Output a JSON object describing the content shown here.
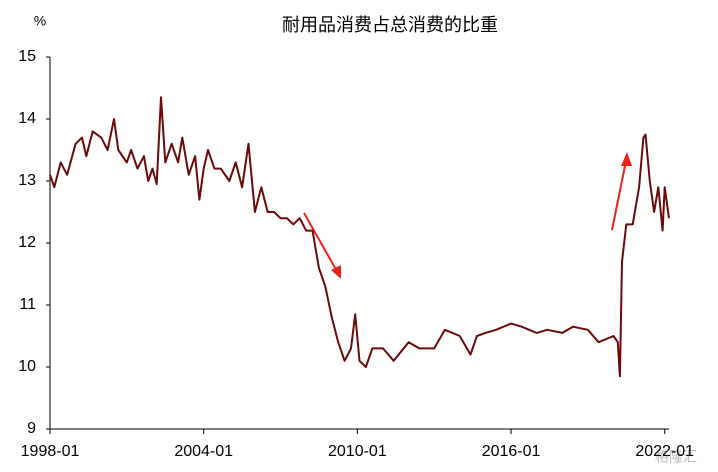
{
  "chart_data": {
    "type": "line",
    "title": "耐用品消费占总消费的比重",
    "y_unit": "%",
    "watermark": "格隆汇",
    "x": [
      "1998-01",
      "1998-03",
      "1998-06",
      "1998-09",
      "1999-01",
      "1999-04",
      "1999-06",
      "1999-09",
      "2000-01",
      "2000-04",
      "2000-07",
      "2000-09",
      "2001-01",
      "2001-03",
      "2001-06",
      "2001-09",
      "2001-11",
      "2002-01",
      "2002-03",
      "2002-05",
      "2002-07",
      "2002-10",
      "2003-01",
      "2003-03",
      "2003-06",
      "2003-09",
      "2003-11",
      "2004-01",
      "2004-03",
      "2004-06",
      "2004-09",
      "2005-01",
      "2005-04",
      "2005-07",
      "2005-10",
      "2006-01",
      "2006-04",
      "2006-07",
      "2006-10",
      "2007-01",
      "2007-04",
      "2007-07",
      "2007-10",
      "2008-01",
      "2008-04",
      "2008-07",
      "2008-10",
      "2009-01",
      "2009-04",
      "2009-07",
      "2009-10",
      "2009-12",
      "2010-02",
      "2010-05",
      "2010-08",
      "2011-01",
      "2011-06",
      "2012-01",
      "2012-06",
      "2013-01",
      "2013-06",
      "2014-01",
      "2014-06",
      "2014-09",
      "2015-01",
      "2015-06",
      "2016-01",
      "2016-06",
      "2017-01",
      "2017-06",
      "2018-01",
      "2018-06",
      "2019-01",
      "2019-06",
      "2020-01",
      "2020-03",
      "2020-04",
      "2020-05",
      "2020-07",
      "2020-10",
      "2021-01",
      "2021-03",
      "2021-04",
      "2021-06",
      "2021-08",
      "2021-10",
      "2021-12",
      "2022-01",
      "2022-03"
    ],
    "series": [
      {
        "color": "#6b0a0a",
        "values": [
          13.1,
          12.9,
          13.3,
          13.1,
          13.6,
          13.7,
          13.4,
          13.8,
          13.7,
          13.5,
          14.0,
          13.5,
          13.3,
          13.5,
          13.2,
          13.4,
          13.0,
          13.2,
          12.95,
          14.35,
          13.3,
          13.6,
          13.3,
          13.7,
          13.1,
          13.4,
          12.7,
          13.2,
          13.5,
          13.2,
          13.2,
          13.0,
          13.3,
          12.9,
          13.6,
          12.5,
          12.9,
          12.5,
          12.5,
          12.4,
          12.4,
          12.3,
          12.4,
          12.2,
          12.2,
          11.6,
          11.3,
          10.8,
          10.4,
          10.1,
          10.3,
          10.85,
          10.1,
          10.0,
          10.3,
          10.3,
          10.1,
          10.4,
          10.3,
          10.3,
          10.6,
          10.5,
          10.2,
          10.5,
          10.55,
          10.6,
          10.7,
          10.65,
          10.55,
          10.6,
          10.55,
          10.65,
          10.6,
          10.4,
          10.5,
          10.4,
          9.85,
          11.7,
          12.3,
          12.3,
          12.9,
          13.7,
          13.75,
          13.0,
          12.5,
          12.9,
          12.2,
          12.9,
          12.4
        ]
      }
    ],
    "xlim": [
      "1998-01",
      "2022-03"
    ],
    "xticks": [
      "1998-01",
      "2004-01",
      "2010-01",
      "2016-01",
      "2022-01"
    ],
    "ylim": [
      9,
      15
    ],
    "yticks": [
      9,
      10,
      11,
      12,
      13,
      14,
      15
    ]
  }
}
